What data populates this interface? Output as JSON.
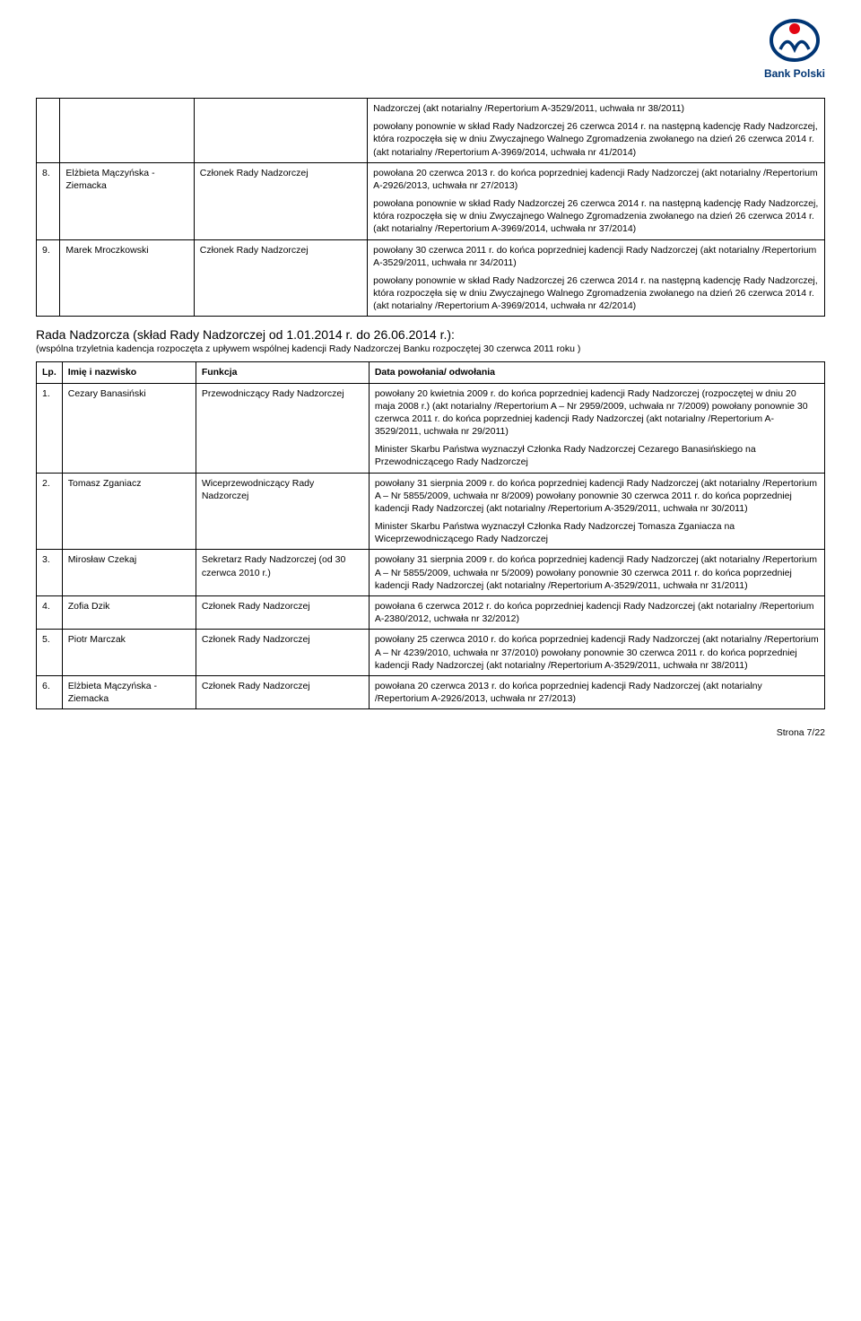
{
  "logo_text": "Bank Polski",
  "table1": {
    "rows": [
      {
        "lp": "8.",
        "name": "Elżbieta\nMączyńska - Ziemacka",
        "func": "Członek Rady Nadzorczej",
        "data_paras": [
          "Nadzorczej\n(akt notarialny /Repertorium\nA-3529/2011, uchwała nr  38/2011)",
          "powołany ponownie w skład Rady Nadzorczej 26 czerwca 2014 r. na następną kadencję Rady Nadzorczej, która rozpoczęła się w dniu Zwyczajnego Walnego Zgromadzenia zwołanego na dzień 26 czerwca 2014 r. (akt notarialny /Repertorium\nA-3969/2014, uchwała nr  41/2014)",
          "powołana 20 czerwca 2013 r. do końca poprzedniej kadencji Rady Nadzorczej (akt notarialny /Repertorium\nA-2926/2013, uchwała nr 27/2013)",
          "powołana ponownie w skład Rady Nadzorczej 26 czerwca 2014 r. na następną kadencję Rady Nadzorczej, która rozpoczęła się w dniu Zwyczajnego Walnego Zgromadzenia zwołanego na dzień 26 czerwca 2014 r. (akt notarialny /Repertorium\nA-3969/2014, uchwała nr  37/2014)"
        ],
        "split_after": 2
      },
      {
        "lp": "9.",
        "name": "Marek\nMroczkowski",
        "func": "Członek Rady Nadzorczej",
        "data_paras": [
          "powołany 30 czerwca 2011 r. do końca poprzedniej kadencji Rady Nadzorczej (akt notarialny /Repertorium\nA-3529/2011, uchwała nr  34/2011)",
          "powołany ponownie w skład Rady Nadzorczej 26 czerwca 2014 r. na następną kadencję Rady Nadzorczej, która rozpoczęła się w dniu Zwyczajnego Walnego Zgromadzenia zwołanego na dzień 26 czerwca 2014 r. (akt notarialny /Repertorium\nA-3969/2014, uchwała nr  42/2014)"
        ],
        "split_after": 0
      }
    ]
  },
  "section": {
    "title": "Rada Nadzorcza (skład Rady Nadzorczej od 1.01.2014 r. do  26.06.2014 r.):",
    "sub": "(wspólna trzyletnia kadencja rozpoczęta z upływem wspólnej kadencji Rady Nadzorczej Banku rozpoczętej 30 czerwca 2011 roku )"
  },
  "table2": {
    "headers": {
      "lp": "Lp.",
      "name": "Imię i nazwisko",
      "func": "Funkcja",
      "data": "Data powołania/\nodwołania"
    },
    "rows": [
      {
        "lp": "1.",
        "name": "Cezary\nBanasiński",
        "func": "Przewodniczący Rady Nadzorczej",
        "data_paras": [
          "powołany 20 kwietnia 2009 r. do końca poprzedniej kadencji Rady Nadzorczej\n(rozpoczętej w dniu 20 maja 2008 r.)\n(akt notarialny /Repertorium\nA – Nr 2959/2009, uchwała nr 7/2009)\npowołany ponownie 30 czerwca 2011 r. do końca poprzedniej kadencji Rady Nadzorczej\n(akt notarialny /Repertorium\nA-3529/2011, uchwała nr  29/2011)",
          "Minister Skarbu Państwa wyznaczył Członka Rady Nadzorczej Cezarego Banasińskiego na Przewodniczącego Rady Nadzorczej"
        ]
      },
      {
        "lp": "2.",
        "name": "Tomasz Zganiacz",
        "func": "Wiceprzewodniczący Rady Nadzorczej",
        "data_paras": [
          "powołany 31 sierpnia 2009 r. do końca poprzedniej kadencji Rady Nadzorczej (akt notarialny /Repertorium\nA – Nr 5855/2009, uchwała nr 8/2009)\npowołany ponownie 30 czerwca 2011 r. do końca poprzedniej kadencji Rady Nadzorczej\n (akt notarialny /Repertorium\nA-3529/2011, uchwała nr  30/2011)",
          "Minister Skarbu Państwa wyznaczył Członka Rady Nadzorczej Tomasza Zganiacza na Wiceprzewodniczącego Rady Nadzorczej"
        ]
      },
      {
        "lp": "3.",
        "name": "Mirosław Czekaj",
        "func": "Sekretarz Rady Nadzorczej (od 30 czerwca 2010 r.)",
        "data_paras": [
          "powołany 31 sierpnia 2009 r. do końca poprzedniej kadencji Rady Nadzorczej (akt notarialny /Repertorium\nA – Nr 5855/2009, uchwała nr 5/2009)\npowołany ponownie 30 czerwca 2011 r. do końca poprzedniej kadencji Rady Nadzorczej\n(akt notarialny /Repertorium A-3529/2011, uchwała nr  31/2011)"
        ]
      },
      {
        "lp": "4.",
        "name": "Zofia Dzik",
        "func": "Członek Rady Nadzorczej",
        "data_paras": [
          "powołana 6 czerwca 2012 r. do końca poprzedniej kadencji Rady Nadzorczej (akt notarialny /Repertorium\nA-2380/2012, uchwała nr  32/2012)"
        ]
      },
      {
        "lp": "5.",
        "name": "Piotr Marczak",
        "func": "Członek Rady Nadzorczej",
        "data_paras": [
          "powołany 25 czerwca 2010 r. do końca poprzedniej kadencji Rady Nadzorczej (akt notarialny /Repertorium\nA – Nr 4239/2010, uchwała nr 37/2010)\npowołany ponownie 30 czerwca 2011 r. do końca poprzedniej kadencji Rady Nadzorczej\n(akt notarialny /Repertorium\nA-3529/2011, uchwała nr  38/2011)"
        ]
      },
      {
        "lp": "6.",
        "name": "Elżbieta\nMączyńska - Ziemacka",
        "func": "Członek Rady Nadzorczej",
        "data_paras": [
          "powołana 20 czerwca 2013 r. do końca poprzedniej kadencji Rady Nadzorczej (akt notarialny /Repertorium\nA-2926/2013, uchwała nr 27/2013)"
        ]
      }
    ]
  },
  "footer": "Strona 7/22"
}
